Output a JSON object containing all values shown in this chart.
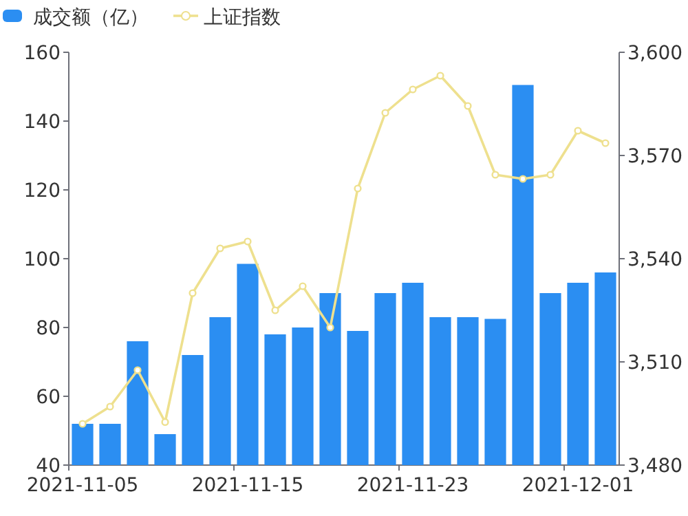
{
  "chart_data": {
    "type": "bar",
    "categories": [
      "2021-11-05",
      null,
      null,
      null,
      null,
      null,
      "2021-11-15",
      null,
      null,
      null,
      null,
      null,
      "2021-11-23",
      null,
      null,
      null,
      null,
      null,
      "2021-12-01",
      null
    ],
    "series": [
      {
        "name": "成交额（亿）",
        "color": "#2b8ef2",
        "values": [
          52,
          52,
          76,
          49,
          72,
          83,
          98.5,
          78,
          80,
          90,
          79,
          90,
          93,
          83,
          83,
          82.5,
          150.5,
          90,
          93,
          96
        ]
      },
      {
        "name": "上证指数",
        "type": "line",
        "axis": "y2",
        "color": "#eee08e",
        "values": [
          3492,
          3497,
          3507.6,
          3492.5,
          3530,
          3543,
          3545,
          3525,
          3532,
          3520,
          3560.4,
          3582.4,
          3589.2,
          3593.2,
          3584.4,
          3564.4,
          3563.2,
          3564.4,
          3577.2,
          3573.6
        ]
      }
    ],
    "ylim": [
      40,
      160
    ],
    "yticks": [
      40,
      60,
      80,
      100,
      120,
      140,
      160
    ],
    "y2lim": [
      3480,
      3600
    ],
    "y2ticks": [
      {
        "value": 3480,
        "label": "3,480"
      },
      {
        "value": 3510,
        "label": "3,510"
      },
      {
        "value": 3540,
        "label": "3,540"
      },
      {
        "value": 3570,
        "label": "3,570"
      },
      {
        "value": 3600,
        "label": "3,600"
      }
    ],
    "legend": "top left",
    "marker": "circle",
    "grid": false
  }
}
